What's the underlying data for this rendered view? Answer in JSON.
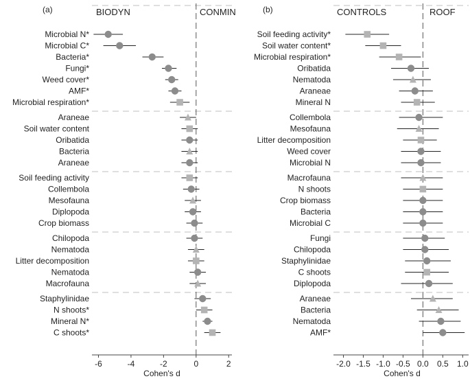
{
  "chart_data": [
    {
      "type": "forest",
      "panel_label": "(a)",
      "left_group": "BIODYN",
      "right_group": "CONMIN",
      "xlabel": "Cohen's d",
      "xlim": [
        -6.4,
        2.2
      ],
      "xticks": [
        -6,
        -4,
        -2,
        0,
        2
      ],
      "xtick_labels": [
        "-6",
        "-4",
        "-2",
        "0",
        "2"
      ],
      "colors": {
        "point": "#8c8c8c",
        "light": "#b4b4b4",
        "line": "#222222",
        "divider": "#bfbfbf"
      },
      "groups": [
        [
          {
            "label": "Microbial N*",
            "d": -5.4,
            "lo": -6.3,
            "hi": -4.5,
            "shape": "circle"
          },
          {
            "label": "Microbial C*",
            "d": -4.7,
            "lo": -5.7,
            "hi": -3.7,
            "shape": "circle"
          },
          {
            "label": "Bacteria*",
            "d": -2.7,
            "lo": -3.3,
            "hi": -2.0,
            "shape": "circle"
          },
          {
            "label": "Fungi*",
            "d": -1.7,
            "lo": -2.1,
            "hi": -1.2,
            "shape": "circle"
          },
          {
            "label": "Weed cover*",
            "d": -1.5,
            "lo": -1.9,
            "hi": -1.1,
            "shape": "circle"
          },
          {
            "label": "AMF*",
            "d": -1.3,
            "lo": -1.7,
            "hi": -0.9,
            "shape": "circle"
          },
          {
            "label": "Microbial respiration*",
            "d": -1.0,
            "lo": -1.6,
            "hi": -0.4,
            "shape": "square"
          }
        ],
        [
          {
            "label": "Araneae",
            "d": -0.5,
            "lo": -1.0,
            "hi": 0.0,
            "shape": "triangle"
          },
          {
            "label": "Soil water content",
            "d": -0.4,
            "lo": -0.9,
            "hi": 0.1,
            "shape": "square"
          },
          {
            "label": "Oribatida",
            "d": -0.4,
            "lo": -0.9,
            "hi": 0.1,
            "shape": "circle"
          },
          {
            "label": "Bacteria",
            "d": -0.4,
            "lo": -0.9,
            "hi": 0.1,
            "shape": "triangle"
          },
          {
            "label": "Araneae",
            "d": -0.4,
            "lo": -0.9,
            "hi": 0.1,
            "shape": "circle"
          }
        ],
        [
          {
            "label": "Soil feeding activity",
            "d": -0.4,
            "lo": -0.9,
            "hi": 0.1,
            "shape": "square"
          },
          {
            "label": "Collembola",
            "d": -0.3,
            "lo": -0.8,
            "hi": 0.2,
            "shape": "circle"
          },
          {
            "label": "Mesofauna",
            "d": -0.2,
            "lo": -0.7,
            "hi": 0.3,
            "shape": "triangle"
          },
          {
            "label": "Diplopoda",
            "d": -0.2,
            "lo": -0.7,
            "hi": 0.3,
            "shape": "circle"
          },
          {
            "label": "Crop biomass",
            "d": -0.1,
            "lo": -0.6,
            "hi": 0.4,
            "shape": "circle"
          }
        ],
        [
          {
            "label": "Chilopoda",
            "d": -0.1,
            "lo": -0.6,
            "hi": 0.4,
            "shape": "circle"
          },
          {
            "label": "Nematoda",
            "d": 0.0,
            "lo": -0.5,
            "hi": 0.5,
            "shape": "triangle"
          },
          {
            "label": "Litter decomposition",
            "d": 0.0,
            "lo": -0.5,
            "hi": 0.5,
            "shape": "square"
          },
          {
            "label": "Nematoda",
            "d": 0.1,
            "lo": -0.4,
            "hi": 0.6,
            "shape": "circle"
          },
          {
            "label": "Macrofauna",
            "d": 0.1,
            "lo": -0.4,
            "hi": 0.6,
            "shape": "triangle"
          }
        ],
        [
          {
            "label": "Staphylinidae",
            "d": 0.4,
            "lo": -0.1,
            "hi": 0.9,
            "shape": "circle"
          },
          {
            "label": "N shoots*",
            "d": 0.5,
            "lo": 0.0,
            "hi": 1.0,
            "shape": "square"
          },
          {
            "label": "Mineral N*",
            "d": 0.7,
            "lo": 0.4,
            "hi": 1.0,
            "shape": "circle"
          },
          {
            "label": "C shoots*",
            "d": 1.0,
            "lo": 0.5,
            "hi": 1.5,
            "shape": "square"
          }
        ]
      ]
    },
    {
      "type": "forest",
      "panel_label": "(b)",
      "left_group": "CONTROLS",
      "right_group": "ROOF",
      "xlabel": "Cohen's d",
      "xlim": [
        -2.25,
        1.15
      ],
      "xticks": [
        -2.0,
        -1.5,
        -1.0,
        -0.5,
        0.0,
        0.5,
        1.0
      ],
      "xtick_labels": [
        "-2.0",
        "-1.5",
        "-1.0",
        "-0.5",
        "0.0",
        "0.5",
        "1.0"
      ],
      "colors": {
        "point": "#8c8c8c",
        "light": "#b4b4b4",
        "line": "#222222",
        "divider": "#bfbfbf"
      },
      "groups": [
        [
          {
            "label": "Soil feeding activity*",
            "d": -1.4,
            "lo": -1.95,
            "hi": -0.85,
            "shape": "square"
          },
          {
            "label": "Soil water content*",
            "d": -1.0,
            "lo": -1.45,
            "hi": -0.55,
            "shape": "square"
          },
          {
            "label": "Microbial respiration*",
            "d": -0.6,
            "lo": -1.1,
            "hi": -0.05,
            "shape": "square"
          },
          {
            "label": "Oribatida",
            "d": -0.3,
            "lo": -0.8,
            "hi": 0.15,
            "shape": "circle"
          },
          {
            "label": "Nematoda",
            "d": -0.25,
            "lo": -0.75,
            "hi": 0.2,
            "shape": "triangle"
          },
          {
            "label": "Araneae",
            "d": -0.2,
            "lo": -0.6,
            "hi": 0.25,
            "shape": "circle"
          },
          {
            "label": "Mineral N",
            "d": -0.15,
            "lo": -0.55,
            "hi": 0.3,
            "shape": "square"
          }
        ],
        [
          {
            "label": "Collembola",
            "d": -0.1,
            "lo": -0.6,
            "hi": 0.5,
            "shape": "circle"
          },
          {
            "label": "Mesofauna",
            "d": -0.1,
            "lo": -0.65,
            "hi": 0.4,
            "shape": "triangle"
          },
          {
            "label": "Litter decomposition",
            "d": -0.05,
            "lo": -0.5,
            "hi": 0.35,
            "shape": "square"
          },
          {
            "label": "Weed cover",
            "d": -0.05,
            "lo": -0.55,
            "hi": 0.45,
            "shape": "circle"
          },
          {
            "label": "Microbial N",
            "d": -0.05,
            "lo": -0.55,
            "hi": 0.45,
            "shape": "circle"
          }
        ],
        [
          {
            "label": "Macrofauna",
            "d": 0.0,
            "lo": -0.55,
            "hi": 0.5,
            "shape": "triangle"
          },
          {
            "label": "N shoots",
            "d": 0.0,
            "lo": -0.5,
            "hi": 0.5,
            "shape": "square"
          },
          {
            "label": "Crop biomass",
            "d": 0.0,
            "lo": -0.5,
            "hi": 0.5,
            "shape": "circle"
          },
          {
            "label": "Bacteria",
            "d": 0.0,
            "lo": -0.5,
            "hi": 0.5,
            "shape": "circle"
          },
          {
            "label": "Microbial C",
            "d": 0.0,
            "lo": -0.5,
            "hi": 0.5,
            "shape": "circle"
          }
        ],
        [
          {
            "label": "Fungi",
            "d": 0.05,
            "lo": -0.5,
            "hi": 0.55,
            "shape": "circle"
          },
          {
            "label": "Chilopoda",
            "d": 0.05,
            "lo": -0.5,
            "hi": 0.65,
            "shape": "circle"
          },
          {
            "label": "Staphylinidae",
            "d": 0.1,
            "lo": -0.45,
            "hi": 0.7,
            "shape": "circle"
          },
          {
            "label": "C shoots",
            "d": 0.1,
            "lo": -0.45,
            "hi": 0.65,
            "shape": "square"
          },
          {
            "label": "Diplopoda",
            "d": 0.15,
            "lo": -0.55,
            "hi": 0.75,
            "shape": "circle"
          }
        ],
        [
          {
            "label": "Araneae",
            "d": 0.25,
            "lo": -0.3,
            "hi": 0.75,
            "shape": "triangle"
          },
          {
            "label": "Bacteria",
            "d": 0.4,
            "lo": -0.15,
            "hi": 0.9,
            "shape": "triangle"
          },
          {
            "label": "Nematoda",
            "d": 0.45,
            "lo": -0.1,
            "hi": 0.95,
            "shape": "circle"
          },
          {
            "label": "AMF*",
            "d": 0.5,
            "lo": 0.0,
            "hi": 1.05,
            "shape": "circle"
          }
        ]
      ]
    }
  ]
}
